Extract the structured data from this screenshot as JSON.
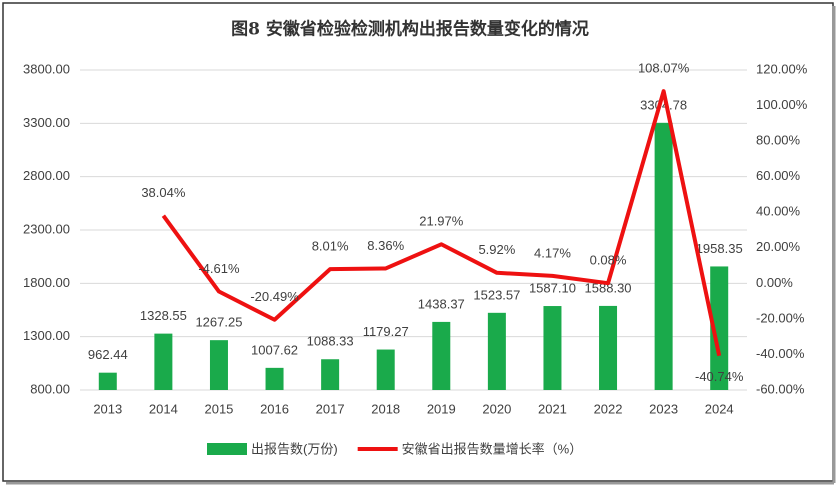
{
  "chart_data": {
    "type": "bar",
    "title": "图8 安徽省检验检测机构出报告数量变化的情况",
    "categories": [
      "2013",
      "2014",
      "2015",
      "2016",
      "2017",
      "2018",
      "2019",
      "2020",
      "2021",
      "2022",
      "2023",
      "2024"
    ],
    "series": [
      {
        "name": "出报告数(万份)",
        "type": "bar",
        "color": "#1aaa4b",
        "values": [
          962.44,
          1328.55,
          1267.25,
          1007.62,
          1088.33,
          1179.27,
          1438.37,
          1523.57,
          1587.1,
          1588.3,
          3304.78,
          1958.35
        ],
        "value_labels": [
          "962.44",
          "1328.55",
          "1267.25",
          "1007.62",
          "1088.33",
          "1179.27",
          "1438.37",
          "1523.57",
          "1587.10",
          "1588.30",
          "3304.78",
          "1958.35"
        ]
      },
      {
        "name": "安徽省出报告数量增长率（%）",
        "type": "line",
        "axis": "y2",
        "color": "#ee1111",
        "values": [
          null,
          38.04,
          -4.61,
          -20.49,
          8.01,
          8.36,
          21.97,
          5.92,
          4.17,
          0.08,
          108.07,
          -40.74
        ],
        "value_labels": [
          null,
          "38.04%",
          "-4.61%",
          "-20.49%",
          "8.01%",
          "8.36%",
          "21.97%",
          "5.92%",
          "4.17%",
          "0.08%",
          "108.07%",
          "-40.74%"
        ]
      }
    ],
    "ylim": [
      800,
      3800
    ],
    "yticks": [
      {
        "value": 800,
        "label": "800.00"
      },
      {
        "value": 1300,
        "label": "1300.00"
      },
      {
        "value": 1800,
        "label": "1800.00"
      },
      {
        "value": 2300,
        "label": "2300.00"
      },
      {
        "value": 2800,
        "label": "2800.00"
      },
      {
        "value": 3300,
        "label": "3300.00"
      },
      {
        "value": 3800,
        "label": "3800.00"
      }
    ],
    "y2lim": [
      -60,
      120
    ],
    "y2ticks": [
      {
        "value": -60,
        "label": "-60.00%"
      },
      {
        "value": -40,
        "label": "-40.00%"
      },
      {
        "value": -20,
        "label": "-20.00%"
      },
      {
        "value": 0,
        "label": "0.00%"
      },
      {
        "value": 20,
        "label": "20.00%"
      },
      {
        "value": 40,
        "label": "40.00%"
      },
      {
        "value": 60,
        "label": "60.00%"
      },
      {
        "value": 80,
        "label": "80.00%"
      },
      {
        "value": 100,
        "label": "100.00%"
      },
      {
        "value": 120,
        "label": "120.00%"
      }
    ],
    "grid": true,
    "legend": "bottom"
  }
}
